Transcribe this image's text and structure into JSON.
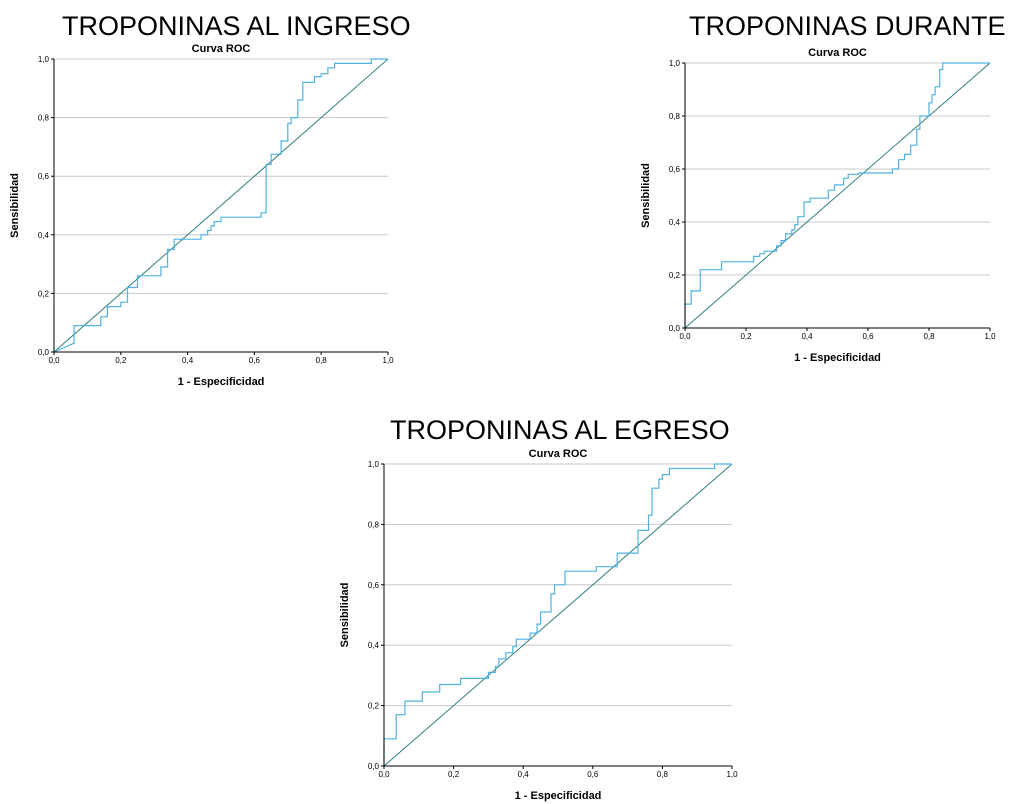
{
  "panels": [
    {
      "title": "TROPONINAS AL INGRESO"
    },
    {
      "title": "TROPONINAS DURANTE"
    },
    {
      "title": "TROPONINAS AL EGRESO"
    }
  ],
  "colors": {
    "roc_curve": "#4fb2e0",
    "reference_line": "#2f7f80",
    "grid": "#c8c8c8",
    "axis": "#000000"
  },
  "chart_data": [
    {
      "type": "line",
      "title": "Curva ROC",
      "xlabel": "1 - Especificidad",
      "ylabel": "Sensibilidad",
      "xlim": [
        0,
        1
      ],
      "ylim": [
        0,
        1
      ],
      "xticks": [
        "0,0",
        "0,2",
        "0,4",
        "0,6",
        "0,8",
        "1,0"
      ],
      "yticks": [
        "0,0",
        "0,2",
        "0,4",
        "0,6",
        "0,8",
        "1,0"
      ],
      "grid": "horizontal",
      "series": [
        {
          "points": [
            [
              0,
              0
            ],
            [
              0.06,
              0.03
            ],
            [
              0.06,
              0.09
            ],
            [
              0.14,
              0.09
            ],
            [
              0.14,
              0.12
            ],
            [
              0.16,
              0.12
            ],
            [
              0.16,
              0.155
            ],
            [
              0.2,
              0.155
            ],
            [
              0.2,
              0.17
            ],
            [
              0.22,
              0.17
            ],
            [
              0.22,
              0.22
            ],
            [
              0.25,
              0.22
            ],
            [
              0.25,
              0.26
            ],
            [
              0.32,
              0.26
            ],
            [
              0.32,
              0.29
            ],
            [
              0.34,
              0.29
            ],
            [
              0.34,
              0.35
            ],
            [
              0.36,
              0.35
            ],
            [
              0.36,
              0.385
            ],
            [
              0.44,
              0.385
            ],
            [
              0.44,
              0.4
            ],
            [
              0.46,
              0.4
            ],
            [
              0.46,
              0.415
            ],
            [
              0.47,
              0.415
            ],
            [
              0.47,
              0.43
            ],
            [
              0.48,
              0.43
            ],
            [
              0.48,
              0.445
            ],
            [
              0.5,
              0.445
            ],
            [
              0.5,
              0.46
            ],
            [
              0.62,
              0.46
            ],
            [
              0.62,
              0.475
            ],
            [
              0.635,
              0.475
            ],
            [
              0.635,
              0.64
            ],
            [
              0.65,
              0.64
            ],
            [
              0.65,
              0.675
            ],
            [
              0.68,
              0.675
            ],
            [
              0.68,
              0.72
            ],
            [
              0.7,
              0.72
            ],
            [
              0.7,
              0.78
            ],
            [
              0.71,
              0.78
            ],
            [
              0.71,
              0.8
            ],
            [
              0.73,
              0.8
            ],
            [
              0.73,
              0.86
            ],
            [
              0.745,
              0.86
            ],
            [
              0.745,
              0.92
            ],
            [
              0.78,
              0.92
            ],
            [
              0.78,
              0.94
            ],
            [
              0.8,
              0.94
            ],
            [
              0.8,
              0.95
            ],
            [
              0.82,
              0.95
            ],
            [
              0.82,
              0.97
            ],
            [
              0.84,
              0.97
            ],
            [
              0.84,
              0.985
            ],
            [
              0.95,
              0.985
            ],
            [
              0.95,
              1.0
            ],
            [
              1.0,
              1.0
            ]
          ]
        },
        {
          "points": [
            [
              0,
              0
            ],
            [
              1,
              1
            ]
          ]
        }
      ]
    },
    {
      "type": "line",
      "title": "Curva ROC",
      "xlabel": "1 - Especificidad",
      "ylabel": "Sensibilidad",
      "xlim": [
        0,
        1
      ],
      "ylim": [
        0,
        1
      ],
      "xticks": [
        "0,0",
        "0,2",
        "0,4",
        "0,6",
        "0,8",
        "1,0"
      ],
      "yticks": [
        "0,0",
        "0,2",
        "0,4",
        "0,6",
        "0,8",
        "1,0"
      ],
      "grid": "horizontal",
      "series": [
        {
          "points": [
            [
              0,
              0
            ],
            [
              0,
              0.09
            ],
            [
              0.02,
              0.09
            ],
            [
              0.02,
              0.14
            ],
            [
              0.05,
              0.14
            ],
            [
              0.05,
              0.22
            ],
            [
              0.12,
              0.22
            ],
            [
              0.12,
              0.25
            ],
            [
              0.225,
              0.25
            ],
            [
              0.225,
              0.27
            ],
            [
              0.245,
              0.27
            ],
            [
              0.245,
              0.28
            ],
            [
              0.26,
              0.28
            ],
            [
              0.26,
              0.29
            ],
            [
              0.3,
              0.29
            ],
            [
              0.3,
              0.31
            ],
            [
              0.315,
              0.31
            ],
            [
              0.315,
              0.33
            ],
            [
              0.33,
              0.33
            ],
            [
              0.33,
              0.355
            ],
            [
              0.35,
              0.355
            ],
            [
              0.35,
              0.37
            ],
            [
              0.36,
              0.37
            ],
            [
              0.36,
              0.39
            ],
            [
              0.37,
              0.39
            ],
            [
              0.37,
              0.42
            ],
            [
              0.39,
              0.42
            ],
            [
              0.39,
              0.475
            ],
            [
              0.41,
              0.475
            ],
            [
              0.41,
              0.49
            ],
            [
              0.47,
              0.49
            ],
            [
              0.47,
              0.52
            ],
            [
              0.49,
              0.52
            ],
            [
              0.49,
              0.54
            ],
            [
              0.52,
              0.54
            ],
            [
              0.52,
              0.565
            ],
            [
              0.535,
              0.565
            ],
            [
              0.535,
              0.58
            ],
            [
              0.57,
              0.58
            ],
            [
              0.57,
              0.585
            ],
            [
              0.68,
              0.585
            ],
            [
              0.68,
              0.6
            ],
            [
              0.7,
              0.6
            ],
            [
              0.7,
              0.635
            ],
            [
              0.72,
              0.635
            ],
            [
              0.72,
              0.655
            ],
            [
              0.74,
              0.655
            ],
            [
              0.74,
              0.69
            ],
            [
              0.76,
              0.69
            ],
            [
              0.76,
              0.75
            ],
            [
              0.77,
              0.75
            ],
            [
              0.77,
              0.8
            ],
            [
              0.8,
              0.8
            ],
            [
              0.8,
              0.85
            ],
            [
              0.81,
              0.85
            ],
            [
              0.81,
              0.88
            ],
            [
              0.82,
              0.88
            ],
            [
              0.82,
              0.91
            ],
            [
              0.835,
              0.91
            ],
            [
              0.835,
              0.975
            ],
            [
              0.845,
              0.975
            ],
            [
              0.845,
              1.0
            ],
            [
              1.0,
              1.0
            ]
          ]
        },
        {
          "points": [
            [
              0,
              0
            ],
            [
              1,
              1
            ]
          ]
        }
      ]
    },
    {
      "type": "line",
      "title": "Curva ROC",
      "xlabel": "1 - Especificidad",
      "ylabel": "Sensibilidad",
      "xlim": [
        0,
        1
      ],
      "ylim": [
        0,
        1
      ],
      "xticks": [
        "0,0",
        "0,2",
        "0,4",
        "0,6",
        "0,8",
        "1,0"
      ],
      "yticks": [
        "0,0",
        "0,2",
        "0,4",
        "0,6",
        "0,8",
        "1,0"
      ],
      "grid": "horizontal",
      "series": [
        {
          "points": [
            [
              0,
              0
            ],
            [
              0,
              0.09
            ],
            [
              0.035,
              0.09
            ],
            [
              0.035,
              0.17
            ],
            [
              0.06,
              0.17
            ],
            [
              0.06,
              0.215
            ],
            [
              0.11,
              0.215
            ],
            [
              0.11,
              0.245
            ],
            [
              0.16,
              0.245
            ],
            [
              0.16,
              0.27
            ],
            [
              0.22,
              0.27
            ],
            [
              0.22,
              0.29
            ],
            [
              0.3,
              0.29
            ],
            [
              0.3,
              0.31
            ],
            [
              0.32,
              0.31
            ],
            [
              0.32,
              0.33
            ],
            [
              0.33,
              0.33
            ],
            [
              0.33,
              0.355
            ],
            [
              0.35,
              0.355
            ],
            [
              0.35,
              0.375
            ],
            [
              0.37,
              0.375
            ],
            [
              0.37,
              0.395
            ],
            [
              0.38,
              0.395
            ],
            [
              0.38,
              0.42
            ],
            [
              0.42,
              0.42
            ],
            [
              0.42,
              0.44
            ],
            [
              0.44,
              0.44
            ],
            [
              0.44,
              0.47
            ],
            [
              0.45,
              0.47
            ],
            [
              0.45,
              0.51
            ],
            [
              0.48,
              0.51
            ],
            [
              0.48,
              0.57
            ],
            [
              0.49,
              0.57
            ],
            [
              0.49,
              0.6
            ],
            [
              0.52,
              0.6
            ],
            [
              0.52,
              0.645
            ],
            [
              0.61,
              0.645
            ],
            [
              0.61,
              0.66
            ],
            [
              0.67,
              0.66
            ],
            [
              0.67,
              0.705
            ],
            [
              0.73,
              0.705
            ],
            [
              0.73,
              0.78
            ],
            [
              0.76,
              0.78
            ],
            [
              0.76,
              0.83
            ],
            [
              0.77,
              0.83
            ],
            [
              0.77,
              0.92
            ],
            [
              0.79,
              0.92
            ],
            [
              0.79,
              0.95
            ],
            [
              0.8,
              0.95
            ],
            [
              0.8,
              0.965
            ],
            [
              0.82,
              0.965
            ],
            [
              0.82,
              0.985
            ],
            [
              0.95,
              0.985
            ],
            [
              0.95,
              1.0
            ],
            [
              1.0,
              1.0
            ]
          ]
        },
        {
          "points": [
            [
              0,
              0
            ],
            [
              1,
              1
            ]
          ]
        }
      ]
    }
  ]
}
